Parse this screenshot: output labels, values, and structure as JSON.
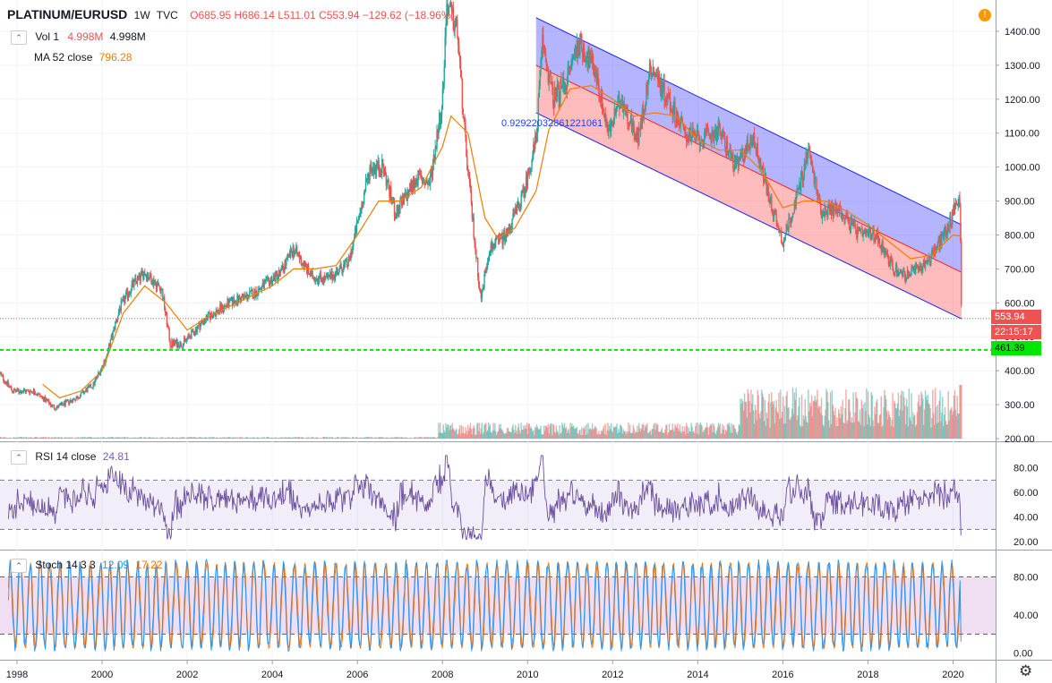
{
  "header": {
    "symbol": "PLATINUM/EURUSD",
    "interval": "1W",
    "source": "TVC",
    "open": "O685.95",
    "high": "H686.14",
    "low": "L511.01",
    "close": "C553.94",
    "change": "−129.62 (−18.96%)"
  },
  "legends": {
    "vol_name": "Vol 1",
    "vol_val1": "4.998M",
    "vol_val2": "4.998M",
    "ma_name": "MA 52 close",
    "ma_val": "796.28",
    "rsi_name": "RSI 14 close",
    "rsi_val": "24.81",
    "stoch_name": "Stoch 14 3 3",
    "stoch_k": "12.09",
    "stoch_d": "17.22"
  },
  "tags": {
    "last_price": "553.94",
    "countdown": "22:15:17",
    "hline_price": "461.39",
    "channel_label": "0.92922032861221061"
  },
  "icons": {
    "settings": "gear-icon",
    "alert": "exclamation-icon"
  },
  "colors": {
    "up": "#26a69a",
    "down": "#ef5350",
    "ma": "#f57c00",
    "rsi": "#7e57c2",
    "stoch_k": "#2196f3",
    "stoch_d": "#ff6d00",
    "hline": "#00e600",
    "channel_top": "#5c5cff",
    "channel_bottom": "#ff6b6b"
  },
  "chart_data": [
    {
      "type": "candlestick",
      "pane": "price",
      "ylim": [
        200,
        1450
      ],
      "yticks": [
        "1400.00",
        "1300.00",
        "1200.00",
        "1100.00",
        "1000.00",
        "900.00",
        "800.00",
        "700.00",
        "600.00",
        "500.00",
        "400.00",
        "300.00",
        "200.00"
      ],
      "xticks": [
        "1998",
        "2000",
        "2002",
        "2004",
        "2006",
        "2008",
        "2010",
        "2012",
        "2014",
        "2016",
        "2018",
        "2020"
      ],
      "x_range": [
        1997.6,
        2021.0
      ],
      "price_path": [
        [
          1997.6,
          390
        ],
        [
          1997.9,
          340
        ],
        [
          1998.4,
          340
        ],
        [
          1998.9,
          290
        ],
        [
          1999.4,
          320
        ],
        [
          1999.8,
          360
        ],
        [
          2000.1,
          440
        ],
        [
          2000.4,
          580
        ],
        [
          2000.7,
          650
        ],
        [
          2001.0,
          690
        ],
        [
          2001.4,
          640
        ],
        [
          2001.6,
          480
        ],
        [
          2001.9,
          480
        ],
        [
          2002.4,
          550
        ],
        [
          2003.0,
          600
        ],
        [
          2003.6,
          630
        ],
        [
          2004.2,
          690
        ],
        [
          2004.5,
          760
        ],
        [
          2004.9,
          680
        ],
        [
          2005.3,
          670
        ],
        [
          2005.8,
          720
        ],
        [
          2006.3,
          1000
        ],
        [
          2006.6,
          1000
        ],
        [
          2006.9,
          860
        ],
        [
          2007.4,
          970
        ],
        [
          2007.7,
          950
        ],
        [
          2008.0,
          1200
        ],
        [
          2008.1,
          1480
        ],
        [
          2008.35,
          1400
        ],
        [
          2008.55,
          1050
        ],
        [
          2008.75,
          790
        ],
        [
          2008.9,
          610
        ],
        [
          2009.1,
          760
        ],
        [
          2009.5,
          800
        ],
        [
          2009.9,
          920
        ],
        [
          2010.2,
          1080
        ],
        [
          2010.35,
          1370
        ],
        [
          2010.6,
          1200
        ],
        [
          2010.9,
          1250
        ],
        [
          2011.2,
          1370
        ],
        [
          2011.6,
          1280
        ],
        [
          2011.9,
          1100
        ],
        [
          2012.2,
          1200
        ],
        [
          2012.6,
          1080
        ],
        [
          2012.9,
          1300
        ],
        [
          2013.3,
          1200
        ],
        [
          2013.7,
          1100
        ],
        [
          2014.1,
          1080
        ],
        [
          2014.5,
          1110
        ],
        [
          2014.9,
          1000
        ],
        [
          2015.3,
          1090
        ],
        [
          2015.7,
          900
        ],
        [
          2016.0,
          780
        ],
        [
          2016.3,
          900
        ],
        [
          2016.6,
          1050
        ],
        [
          2016.9,
          870
        ],
        [
          2017.3,
          880
        ],
        [
          2017.8,
          800
        ],
        [
          2018.2,
          800
        ],
        [
          2018.6,
          700
        ],
        [
          2018.9,
          680
        ],
        [
          2019.3,
          710
        ],
        [
          2019.6,
          760
        ],
        [
          2019.9,
          830
        ],
        [
          2020.1,
          900
        ],
        [
          2020.15,
          930
        ],
        [
          2020.18,
          760
        ],
        [
          2020.2,
          554
        ]
      ],
      "ma52": [
        [
          1998.6,
          360
        ],
        [
          1999.0,
          320
        ],
        [
          1999.5,
          340
        ],
        [
          2000.0,
          400
        ],
        [
          2000.5,
          570
        ],
        [
          2001.0,
          650
        ],
        [
          2001.5,
          600
        ],
        [
          2002.0,
          520
        ],
        [
          2002.5,
          560
        ],
        [
          2003.0,
          590
        ],
        [
          2003.5,
          620
        ],
        [
          2004.0,
          650
        ],
        [
          2004.5,
          700
        ],
        [
          2005.0,
          700
        ],
        [
          2005.5,
          710
        ],
        [
          2006.0,
          800
        ],
        [
          2006.5,
          900
        ],
        [
          2007.0,
          900
        ],
        [
          2007.5,
          940
        ],
        [
          2008.0,
          1060
        ],
        [
          2008.2,
          1150
        ],
        [
          2008.6,
          1100
        ],
        [
          2009.0,
          850
        ],
        [
          2009.3,
          790
        ],
        [
          2009.7,
          820
        ],
        [
          2010.2,
          930
        ],
        [
          2010.5,
          1110
        ],
        [
          2011.0,
          1230
        ],
        [
          2011.5,
          1240
        ],
        [
          2012.0,
          1200
        ],
        [
          2012.5,
          1150
        ],
        [
          2013.0,
          1160
        ],
        [
          2013.5,
          1150
        ],
        [
          2014.0,
          1080
        ],
        [
          2014.5,
          1050
        ],
        [
          2015.0,
          1050
        ],
        [
          2015.5,
          990
        ],
        [
          2016.0,
          880
        ],
        [
          2016.5,
          900
        ],
        [
          2017.0,
          900
        ],
        [
          2017.5,
          870
        ],
        [
          2018.0,
          830
        ],
        [
          2018.5,
          780
        ],
        [
          2019.0,
          730
        ],
        [
          2019.5,
          740
        ],
        [
          2020.0,
          800
        ],
        [
          2020.2,
          796
        ]
      ],
      "channel": {
        "x0": 2010.2,
        "x1": 2020.2,
        "top": [
          1440,
          830
        ],
        "mid": [
          1300,
          690
        ],
        "bottom": [
          1160,
          553
        ]
      },
      "last_price": 553.94,
      "hline": 461.39
    },
    {
      "type": "histogram",
      "pane": "volume",
      "name": "Vol 1",
      "last": "4.998M"
    },
    {
      "type": "line",
      "pane": "rsi",
      "name": "RSI 14 close",
      "ylim": [
        15,
        95
      ],
      "yticks": [
        "80.00",
        "60.00",
        "40.00",
        "20.00"
      ],
      "bands": [
        30,
        70
      ],
      "last": 24.81
    },
    {
      "type": "line",
      "pane": "stoch",
      "name": "Stoch 14 3 3",
      "ylim": [
        -5,
        100
      ],
      "yticks": [
        "80.00",
        "40.00",
        "0.00"
      ],
      "bands": [
        20,
        80
      ],
      "k_last": 12.09,
      "d_last": 17.22
    }
  ]
}
